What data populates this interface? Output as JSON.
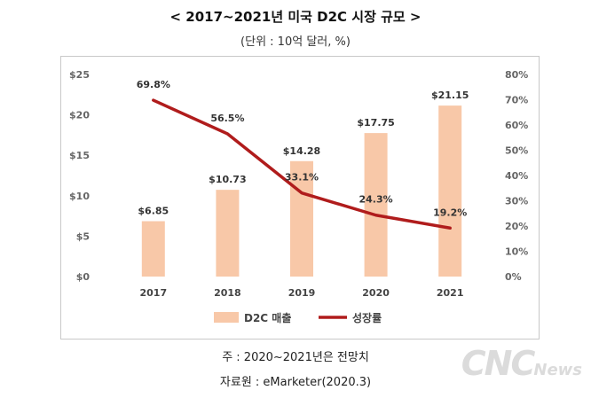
{
  "title": "< 2017~2021년 미국 D2C 시장 규모 >",
  "subtitle": "(단위 : 10억 달러, %)",
  "notes": {
    "note1": "주 : 2020~2021년은 전망치",
    "note2": "자료원 : eMarketer(2020.3)"
  },
  "watermark": {
    "big": "CNC",
    "small": "News"
  },
  "chart_data": {
    "type": "bar",
    "categories": [
      "2017",
      "2018",
      "2019",
      "2020",
      "2021"
    ],
    "series": [
      {
        "name": "D2C 매출",
        "kind": "bar",
        "axis": "left",
        "values": [
          6.85,
          10.73,
          14.28,
          17.75,
          21.15
        ],
        "labels": [
          "$6.85",
          "$10.73",
          "$14.28",
          "$17.75",
          "$21.15"
        ],
        "color": "#f8c8a8"
      },
      {
        "name": "성장률",
        "kind": "line",
        "axis": "right",
        "values": [
          69.8,
          56.5,
          33.1,
          24.3,
          19.2
        ],
        "labels": [
          "69.8%",
          "56.5%",
          "33.1%",
          "24.3%",
          "19.2%"
        ],
        "color": "#b01c1c"
      }
    ],
    "y_left": {
      "min": 0,
      "max": 25,
      "step": 5,
      "tick_labels": [
        "$0",
        "$5",
        "$10",
        "$15",
        "$20",
        "$25"
      ]
    },
    "y_right": {
      "min": 0,
      "max": 80,
      "step": 10,
      "tick_labels": [
        "0%",
        "10%",
        "20%",
        "30%",
        "40%",
        "50%",
        "60%",
        "70%",
        "80%"
      ]
    },
    "grid": false,
    "legend_position": "bottom"
  }
}
